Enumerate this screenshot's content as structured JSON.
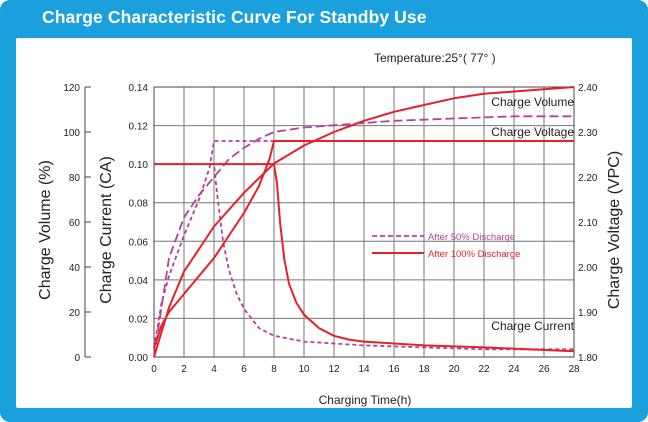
{
  "title": "Charge Characteristic Curve For Standby Use",
  "temperature_label": "Temperature:25°( 77° )",
  "colors": {
    "frame": "#1aa0dc",
    "after50": "#b5409b",
    "after100": "#e6202a",
    "grid": "#777777"
  },
  "chart_data": {
    "type": "line",
    "xlabel": "Charging Time(h)",
    "xlim": [
      0,
      28
    ],
    "xticks": [
      "0",
      "2",
      "4",
      "6",
      "8",
      "10",
      "12",
      "14",
      "16",
      "18",
      "20",
      "22",
      "24",
      "26",
      "28"
    ],
    "axes": {
      "volume": {
        "label": "Charge Volume (%)",
        "lim": [
          0,
          120
        ],
        "ticks": [
          "0",
          "20",
          "40",
          "60",
          "80",
          "100",
          "120"
        ]
      },
      "current": {
        "label": "Charge Current (CA)",
        "lim": [
          0,
          0.14
        ],
        "ticks": [
          "0.00",
          "0.02",
          "0.04",
          "0.06",
          "0.08",
          "0.10",
          "0.12",
          "0.14"
        ]
      },
      "voltage": {
        "label": "Charge Voltage (VPC)",
        "lim": [
          1.8,
          2.4
        ],
        "ticks": [
          "1.80",
          "1.90",
          "2.00",
          "2.10",
          "2.20",
          "2.30",
          "2.40"
        ]
      }
    },
    "legend": [
      {
        "name": "After 50% Discharge",
        "style": "dashed",
        "color": "#b5409b"
      },
      {
        "name": "After 100% Discharge",
        "style": "solid",
        "color": "#e6202a"
      }
    ],
    "curve_labels": [
      "Charge Volume",
      "Charge Voltage",
      "Charge Current"
    ],
    "series": [
      {
        "legend": 0,
        "quantity": "voltage",
        "x": [
          0,
          0.5,
          1,
          2,
          3,
          3.7,
          4,
          4.2,
          6,
          10,
          16,
          20,
          24,
          28
        ],
        "y": [
          1.82,
          1.92,
          1.98,
          2.07,
          2.15,
          2.22,
          2.28,
          2.28,
          2.28,
          2.28,
          2.28,
          2.28,
          2.28,
          2.28
        ]
      },
      {
        "legend": 0,
        "quantity": "current",
        "x": [
          0,
          4,
          4.2,
          4.6,
          5,
          5.5,
          6,
          7,
          8,
          10,
          12,
          14,
          18,
          22,
          28
        ],
        "y": [
          0.1,
          0.1,
          0.085,
          0.06,
          0.045,
          0.033,
          0.025,
          0.015,
          0.011,
          0.008,
          0.007,
          0.006,
          0.005,
          0.004,
          0.004
        ]
      },
      {
        "legend": 0,
        "quantity": "volume",
        "x": [
          0,
          1,
          2,
          3,
          4,
          5,
          6,
          7,
          8,
          10,
          12,
          14,
          16,
          20,
          24,
          28
        ],
        "y": [
          0,
          44,
          62,
          72,
          80,
          88,
          93,
          97,
          100,
          102,
          103,
          104,
          105,
          106,
          107,
          107
        ]
      },
      {
        "legend": 1,
        "quantity": "voltage",
        "x": [
          0,
          0.5,
          1,
          2,
          3,
          4,
          5,
          6,
          7,
          7.7,
          8,
          8.3,
          10,
          14,
          20,
          28
        ],
        "y": [
          1.82,
          1.87,
          1.9,
          1.94,
          1.98,
          2.02,
          2.07,
          2.12,
          2.18,
          2.24,
          2.28,
          2.28,
          2.28,
          2.28,
          2.28,
          2.28
        ]
      },
      {
        "legend": 1,
        "quantity": "current",
        "x": [
          0,
          8,
          8.2,
          8.4,
          8.7,
          9,
          9.5,
          10,
          11,
          12,
          13,
          14,
          16,
          18,
          22,
          28
        ],
        "y": [
          0.1,
          0.1,
          0.09,
          0.07,
          0.05,
          0.038,
          0.028,
          0.022,
          0.015,
          0.011,
          0.009,
          0.008,
          0.007,
          0.006,
          0.005,
          0.003
        ]
      },
      {
        "legend": 1,
        "quantity": "volume",
        "x": [
          0,
          1,
          2,
          4,
          6,
          8,
          10,
          12,
          14,
          16,
          18,
          20,
          22,
          24,
          26,
          28
        ],
        "y": [
          0,
          22,
          38,
          58,
          73,
          86,
          94,
          100,
          105,
          109,
          112,
          115,
          117,
          118,
          119,
          120
        ]
      }
    ]
  }
}
